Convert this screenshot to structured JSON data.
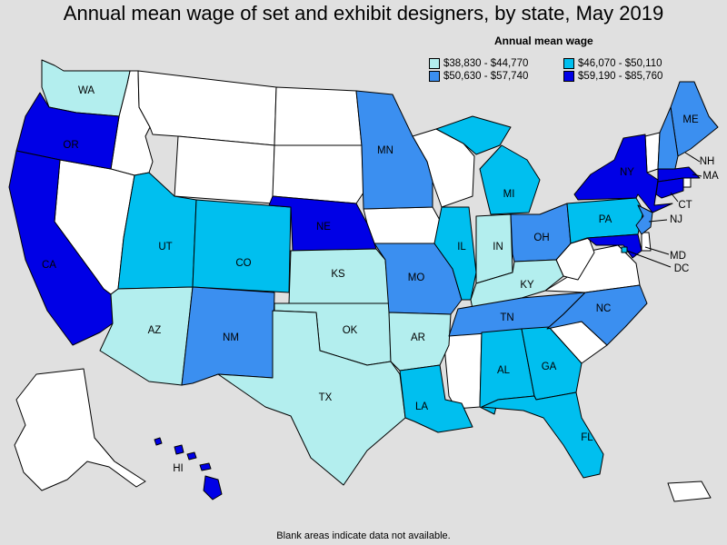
{
  "title": "Annual mean wage of set and exhibit designers, by state, May 2019",
  "legend": {
    "title": "Annual mean wage",
    "ranges": [
      {
        "label": "$38,830 - $44,770",
        "color": "#b3eeee"
      },
      {
        "label": "$46,070 - $50,110",
        "color": "#00bfef"
      },
      {
        "label": "$50,630 - $57,740",
        "color": "#3b8ff0"
      },
      {
        "label": "$59,190 - $85,760",
        "color": "#0000e6"
      }
    ]
  },
  "no_data_color": "#ffffff",
  "footnote": "Blank areas indicate data not available.",
  "states": [
    {
      "abbr": "WA",
      "tier": 0
    },
    {
      "abbr": "OR",
      "tier": 3
    },
    {
      "abbr": "CA",
      "tier": 3
    },
    {
      "abbr": "UT",
      "tier": 1
    },
    {
      "abbr": "CO",
      "tier": 1
    },
    {
      "abbr": "AZ",
      "tier": 0
    },
    {
      "abbr": "NM",
      "tier": 2
    },
    {
      "abbr": "NE",
      "tier": 3
    },
    {
      "abbr": "KS",
      "tier": 0
    },
    {
      "abbr": "OK",
      "tier": 0
    },
    {
      "abbr": "TX",
      "tier": 0
    },
    {
      "abbr": "MN",
      "tier": 2
    },
    {
      "abbr": "MO",
      "tier": 2
    },
    {
      "abbr": "AR",
      "tier": 0
    },
    {
      "abbr": "LA",
      "tier": 1
    },
    {
      "abbr": "IL",
      "tier": 1
    },
    {
      "abbr": "MI",
      "tier": 1
    },
    {
      "abbr": "IN",
      "tier": 0
    },
    {
      "abbr": "OH",
      "tier": 2
    },
    {
      "abbr": "KY",
      "tier": 0
    },
    {
      "abbr": "TN",
      "tier": 2
    },
    {
      "abbr": "AL",
      "tier": 1
    },
    {
      "abbr": "GA",
      "tier": 1
    },
    {
      "abbr": "FL",
      "tier": 1
    },
    {
      "abbr": "NC",
      "tier": 2
    },
    {
      "abbr": "PA",
      "tier": 1
    },
    {
      "abbr": "NY",
      "tier": 3
    },
    {
      "abbr": "ME",
      "tier": 2
    },
    {
      "abbr": "NH",
      "tier": 2
    },
    {
      "abbr": "MA",
      "tier": 3
    },
    {
      "abbr": "CT",
      "tier": 3
    },
    {
      "abbr": "NJ",
      "tier": 2
    },
    {
      "abbr": "MD",
      "tier": 3
    },
    {
      "abbr": "DC",
      "tier": 1
    },
    {
      "abbr": "HI",
      "tier": 3
    }
  ]
}
